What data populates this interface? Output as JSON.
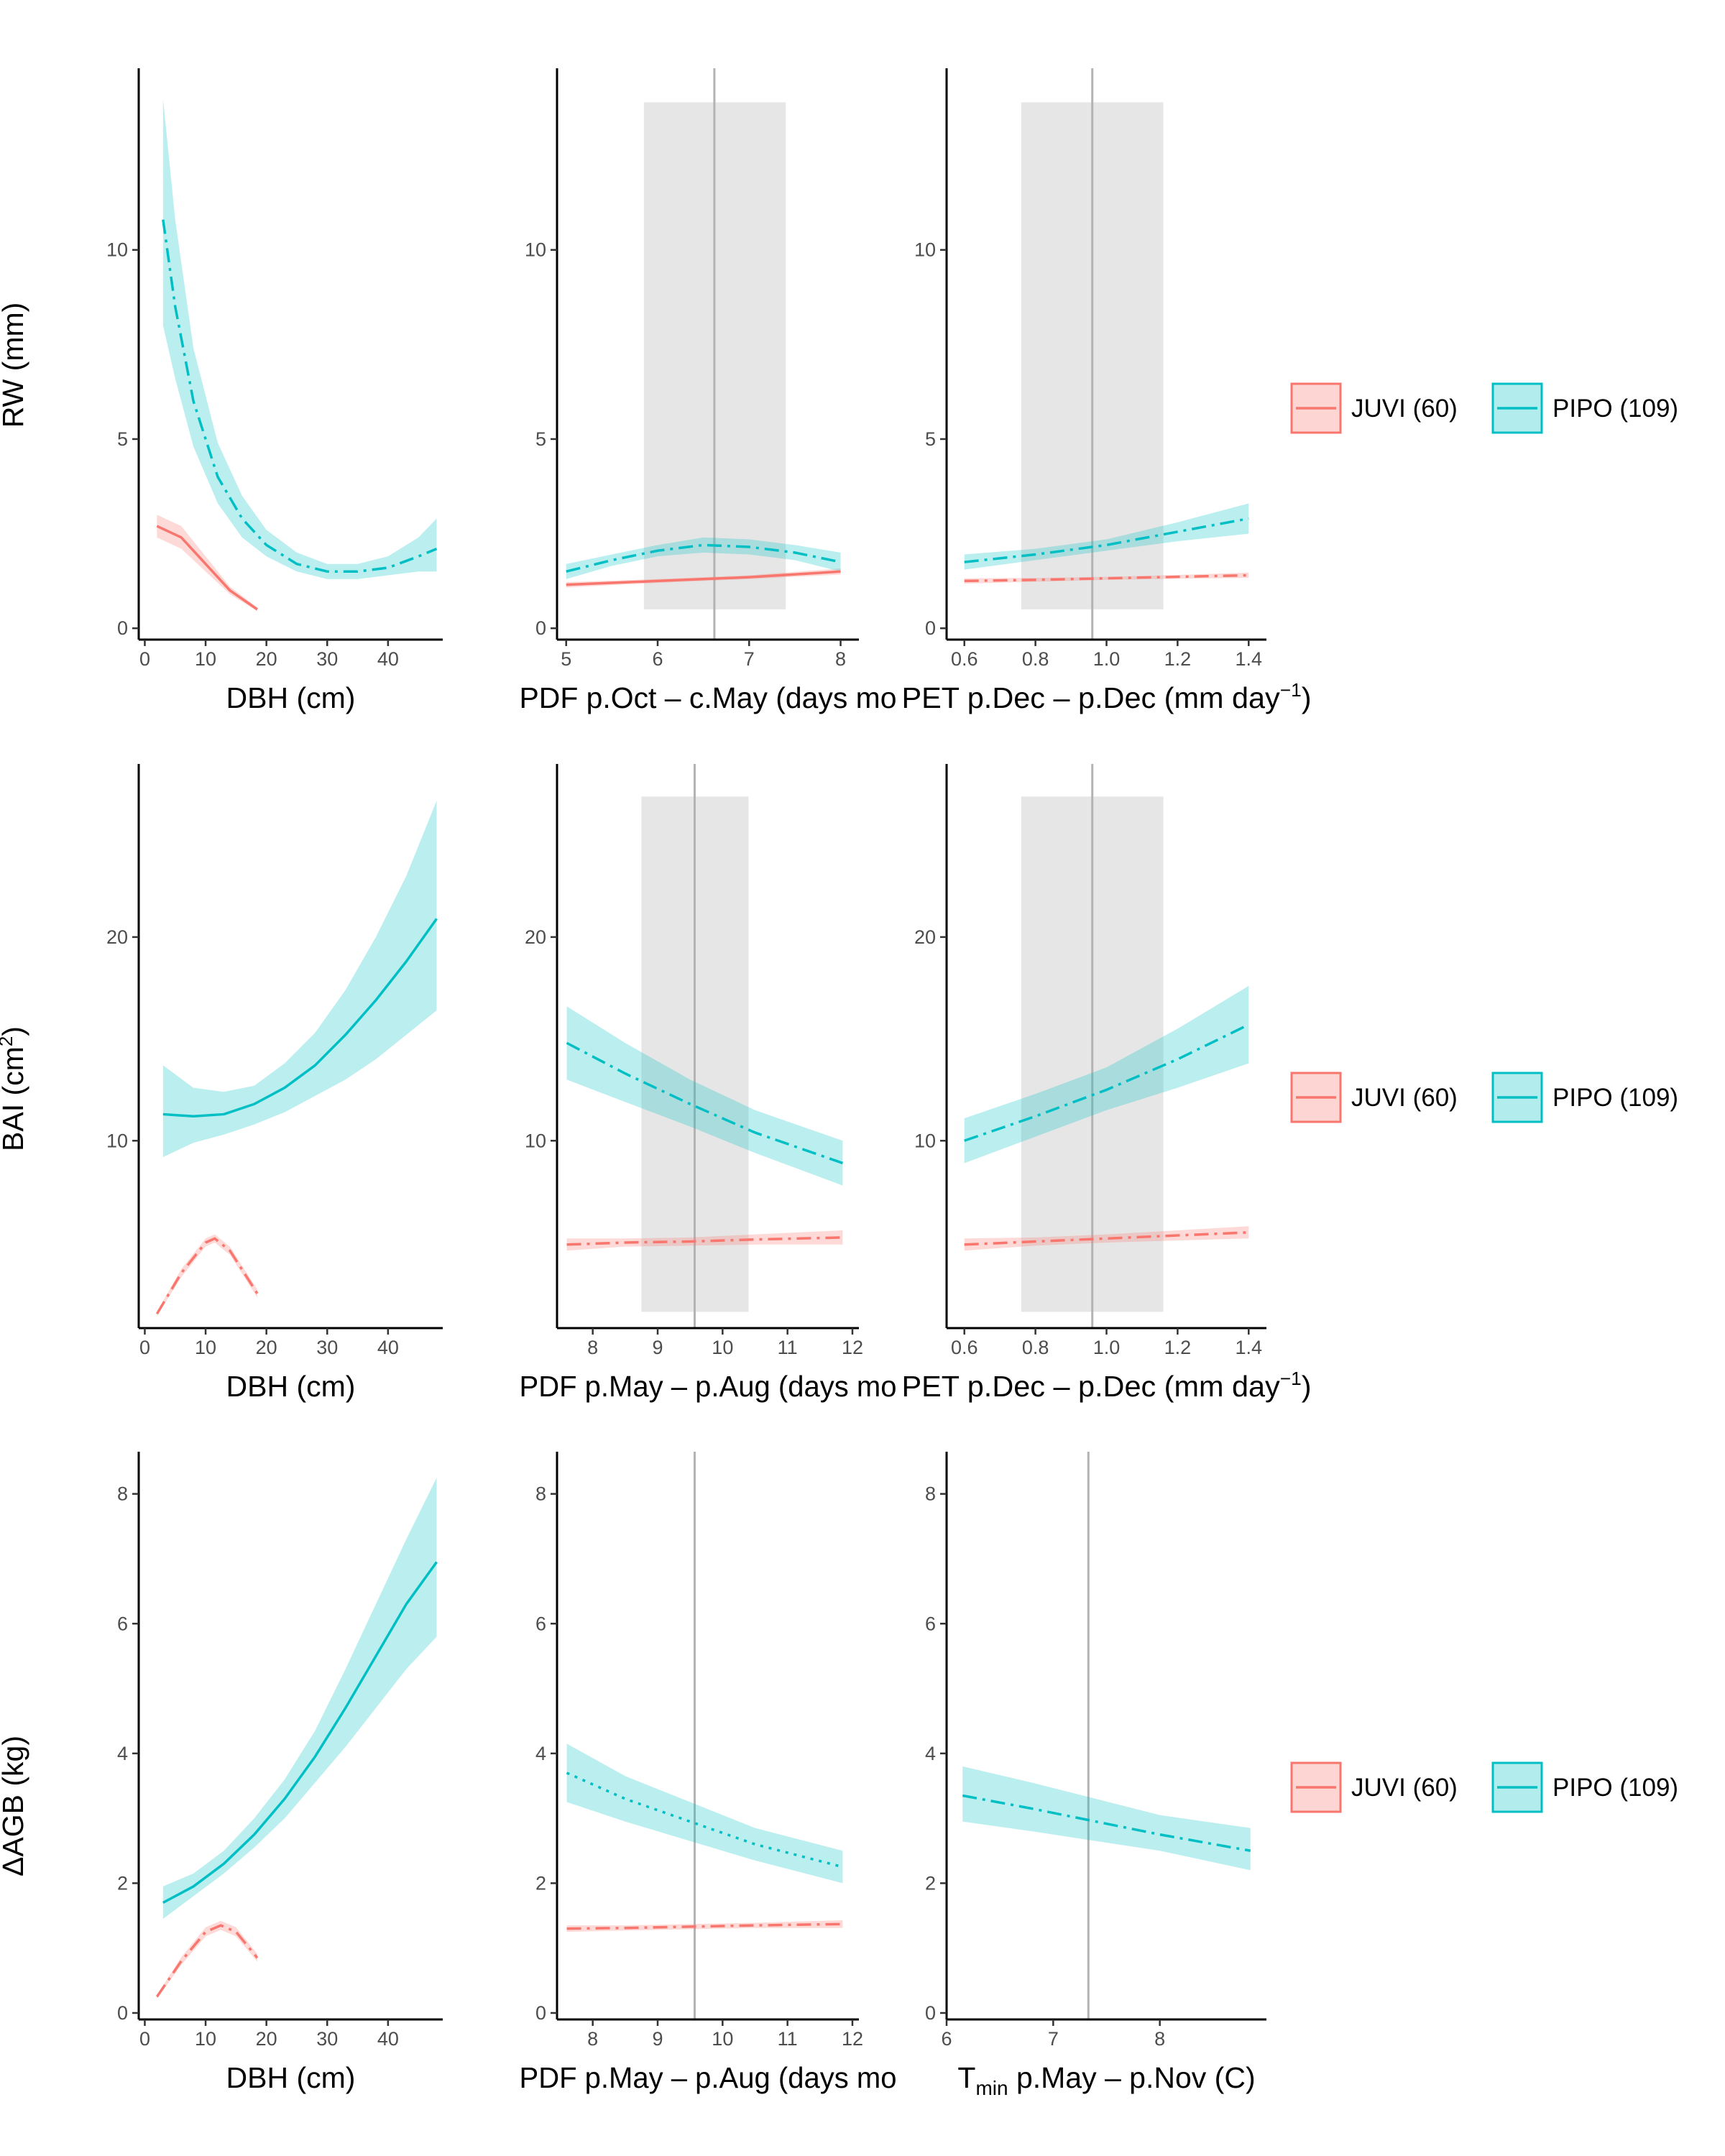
{
  "colors": {
    "juvi": "#F8766D",
    "pipo": "#00BFC4",
    "shade": "#E6E6E6",
    "vline": "#B3B3B3"
  },
  "legend": {
    "items": [
      {
        "label": "JUVI (60)",
        "color": "#F8766D"
      },
      {
        "label": "PIPO (109)",
        "color": "#00BFC4"
      }
    ]
  },
  "rows": [
    {
      "ylabel": "RW (mm)",
      "ylabel_sup": ""
    },
    {
      "ylabel": "BAI (cm",
      "ylabel_sup": "2",
      "ylabel_close": ")"
    },
    {
      "ylabel": "ΔAGB (kg)",
      "ylabel_sup": ""
    }
  ],
  "chart_data": [
    {
      "type": "line",
      "row": 0,
      "col": 0,
      "xlabel": "DBH  (cm)",
      "xlim": [
        -1,
        49
      ],
      "ylim": [
        -0.3,
        14.8
      ],
      "xticks": [
        0,
        10,
        20,
        30,
        40
      ],
      "xtick_labels": [
        "0",
        "10",
        "20",
        "30",
        "40"
      ],
      "yticks": [
        0,
        5,
        10
      ],
      "ytick_labels": [
        "0",
        "5",
        "10"
      ],
      "series": [
        {
          "name": "JUVI (60)",
          "color": "#F8766D",
          "dash": "solid",
          "x": [
            2,
            6,
            10,
            14,
            18.5
          ],
          "y": [
            2.7,
            2.4,
            1.7,
            1.0,
            0.5
          ],
          "lower": [
            2.4,
            2.1,
            1.5,
            0.9,
            0.45
          ],
          "upper": [
            3.0,
            2.7,
            1.9,
            1.1,
            0.55
          ]
        },
        {
          "name": "PIPO (109)",
          "color": "#00BFC4",
          "dash": "dashdot",
          "x": [
            3,
            5,
            8,
            12,
            16,
            20,
            25,
            30,
            35,
            40,
            45,
            48
          ],
          "y": [
            10.8,
            8.5,
            6.0,
            4.0,
            2.9,
            2.2,
            1.7,
            1.5,
            1.5,
            1.6,
            1.9,
            2.1
          ],
          "lower": [
            8.0,
            6.6,
            4.8,
            3.3,
            2.4,
            1.9,
            1.5,
            1.3,
            1.3,
            1.4,
            1.5,
            1.5
          ],
          "upper": [
            14.0,
            10.8,
            7.4,
            4.9,
            3.5,
            2.6,
            2.0,
            1.7,
            1.7,
            1.9,
            2.4,
            2.9
          ]
        }
      ]
    },
    {
      "type": "line",
      "row": 0,
      "col": 1,
      "xlabel": "PDF p.Oct – c.May (days mo",
      "xlim": [
        4.9,
        8.2
      ],
      "ylim": [
        -0.3,
        14.8
      ],
      "xticks": [
        5,
        6,
        7,
        8
      ],
      "xtick_labels": [
        "5",
        "6",
        "7",
        "8"
      ],
      "yticks": [
        0,
        5,
        10
      ],
      "ytick_labels": [
        "0",
        "5",
        "10"
      ],
      "shade": [
        5.85,
        7.4
      ],
      "shade_y": [
        0.5,
        13.9
      ],
      "vline": 6.62,
      "series": [
        {
          "name": "JUVI (60)",
          "color": "#F8766D",
          "dash": "solid",
          "x": [
            5,
            6,
            7,
            8
          ],
          "y": [
            1.15,
            1.25,
            1.35,
            1.5
          ],
          "lower": [
            1.08,
            1.2,
            1.3,
            1.42
          ],
          "upper": [
            1.22,
            1.3,
            1.4,
            1.58
          ]
        },
        {
          "name": "PIPO (109)",
          "color": "#00BFC4",
          "dash": "dashdot",
          "x": [
            5,
            5.5,
            6,
            6.5,
            7,
            7.5,
            8
          ],
          "y": [
            1.5,
            1.8,
            2.05,
            2.2,
            2.15,
            2.0,
            1.75
          ],
          "lower": [
            1.3,
            1.65,
            1.9,
            2.0,
            1.95,
            1.8,
            1.5
          ],
          "upper": [
            1.7,
            1.95,
            2.2,
            2.4,
            2.35,
            2.2,
            2.0
          ]
        }
      ]
    },
    {
      "type": "line",
      "row": 0,
      "col": 2,
      "xlabel": "PET p.Dec – p.Dec (mm day",
      "xlabel_sup": "−1",
      "xlabel_close": ")",
      "xlim": [
        0.55,
        1.45
      ],
      "ylim": [
        -0.3,
        14.8
      ],
      "xticks": [
        0.6,
        0.8,
        1.0,
        1.2,
        1.4
      ],
      "xtick_labels": [
        "0.6",
        "0.8",
        "1.0",
        "1.2",
        "1.4"
      ],
      "yticks": [
        0,
        5,
        10
      ],
      "ytick_labels": [
        "0",
        "5",
        "10"
      ],
      "shade": [
        0.76,
        1.16
      ],
      "shade_y": [
        0.5,
        13.9
      ],
      "vline": 0.96,
      "series": [
        {
          "name": "JUVI (60)",
          "color": "#F8766D",
          "dash": "dashdot",
          "x": [
            0.6,
            0.8,
            1.0,
            1.2,
            1.4
          ],
          "y": [
            1.25,
            1.28,
            1.32,
            1.36,
            1.4
          ],
          "lower": [
            1.18,
            1.23,
            1.28,
            1.31,
            1.33
          ],
          "upper": [
            1.32,
            1.33,
            1.36,
            1.41,
            1.47
          ]
        },
        {
          "name": "PIPO (109)",
          "color": "#00BFC4",
          "dash": "dashdot",
          "x": [
            0.6,
            0.8,
            1.0,
            1.2,
            1.4
          ],
          "y": [
            1.75,
            1.95,
            2.2,
            2.55,
            2.9
          ],
          "lower": [
            1.55,
            1.8,
            2.05,
            2.3,
            2.5
          ],
          "upper": [
            1.95,
            2.1,
            2.35,
            2.8,
            3.3
          ]
        }
      ]
    },
    {
      "type": "line",
      "row": 1,
      "col": 0,
      "xlabel": "DBH  (cm)",
      "xlim": [
        -1,
        49
      ],
      "ylim": [
        0.8,
        28.5
      ],
      "xticks": [
        0,
        10,
        20,
        30,
        40
      ],
      "xtick_labels": [
        "0",
        "10",
        "20",
        "30",
        "40"
      ],
      "yticks": [
        10,
        20
      ],
      "ytick_labels": [
        "10",
        "20"
      ],
      "series": [
        {
          "name": "JUVI (60)",
          "color": "#F8766D",
          "dash": "dashdot",
          "x": [
            2,
            6,
            10,
            11.5,
            14,
            18.5
          ],
          "y": [
            1.5,
            3.5,
            5.0,
            5.2,
            4.6,
            2.5
          ],
          "lower": [
            1.4,
            3.3,
            4.8,
            5.0,
            4.4,
            2.3
          ],
          "upper": [
            1.6,
            3.7,
            5.2,
            5.4,
            4.8,
            2.7
          ]
        },
        {
          "name": "PIPO (109)",
          "color": "#00BFC4",
          "dash": "solid",
          "x": [
            3,
            8,
            13,
            18,
            23,
            28,
            33,
            38,
            43,
            48
          ],
          "y": [
            11.3,
            11.2,
            11.3,
            11.8,
            12.6,
            13.7,
            15.2,
            16.9,
            18.8,
            20.9
          ],
          "lower": [
            9.2,
            9.9,
            10.3,
            10.8,
            11.4,
            12.2,
            13.0,
            14.0,
            15.2,
            16.4
          ],
          "upper": [
            13.7,
            12.6,
            12.4,
            12.7,
            13.8,
            15.3,
            17.4,
            20.0,
            23.0,
            26.7
          ]
        }
      ]
    },
    {
      "type": "line",
      "row": 1,
      "col": 1,
      "xlabel": "PDF p.May – p.Aug (days mo",
      "xlim": [
        7.45,
        12.1
      ],
      "ylim": [
        0.8,
        28.5
      ],
      "xticks": [
        8,
        9,
        10,
        11,
        12
      ],
      "xtick_labels": [
        "8",
        "9",
        "10",
        "11",
        "12"
      ],
      "yticks": [
        10,
        20
      ],
      "ytick_labels": [
        "10",
        "20"
      ],
      "shade": [
        8.75,
        10.4
      ],
      "shade_y": [
        1.6,
        26.9
      ],
      "vline": 9.57,
      "series": [
        {
          "name": "JUVI (60)",
          "color": "#F8766D",
          "dash": "dashdot",
          "x": [
            7.6,
            8.5,
            9.5,
            10.5,
            11.85
          ],
          "y": [
            4.9,
            5.0,
            5.05,
            5.15,
            5.25
          ],
          "lower": [
            4.6,
            4.8,
            4.85,
            4.9,
            4.9
          ],
          "upper": [
            5.2,
            5.2,
            5.25,
            5.4,
            5.6
          ]
        },
        {
          "name": "PIPO (109)",
          "color": "#00BFC4",
          "dash": "dashdot",
          "x": [
            7.6,
            8.5,
            9.5,
            10.5,
            11.85
          ],
          "y": [
            14.8,
            13.3,
            11.8,
            10.4,
            8.9
          ],
          "lower": [
            13.0,
            11.9,
            10.7,
            9.4,
            7.8
          ],
          "upper": [
            16.6,
            14.8,
            13.0,
            11.5,
            10.0
          ]
        }
      ]
    },
    {
      "type": "line",
      "row": 1,
      "col": 2,
      "xlabel": "PET p.Dec – p.Dec (mm day",
      "xlabel_sup": "−1",
      "xlabel_close": ")",
      "xlim": [
        0.55,
        1.45
      ],
      "ylim": [
        0.8,
        28.5
      ],
      "xticks": [
        0.6,
        0.8,
        1.0,
        1.2,
        1.4
      ],
      "xtick_labels": [
        "0.6",
        "0.8",
        "1.0",
        "1.2",
        "1.4"
      ],
      "yticks": [
        10,
        20
      ],
      "ytick_labels": [
        "10",
        "20"
      ],
      "shade": [
        0.76,
        1.16
      ],
      "shade_y": [
        1.6,
        26.9
      ],
      "vline": 0.96,
      "series": [
        {
          "name": "JUVI (60)",
          "color": "#F8766D",
          "dash": "dashdot",
          "x": [
            0.6,
            0.8,
            1.0,
            1.2,
            1.4
          ],
          "y": [
            4.9,
            5.05,
            5.2,
            5.35,
            5.5
          ],
          "lower": [
            4.6,
            4.85,
            5.0,
            5.1,
            5.2
          ],
          "upper": [
            5.2,
            5.25,
            5.4,
            5.6,
            5.8
          ]
        },
        {
          "name": "PIPO (109)",
          "color": "#00BFC4",
          "dash": "dashdot",
          "x": [
            0.6,
            0.8,
            1.0,
            1.2,
            1.4
          ],
          "y": [
            10.0,
            11.2,
            12.5,
            14.0,
            15.7
          ],
          "lower": [
            8.9,
            10.2,
            11.5,
            12.6,
            13.8
          ],
          "upper": [
            11.1,
            12.3,
            13.6,
            15.5,
            17.6
          ]
        }
      ]
    },
    {
      "type": "line",
      "row": 2,
      "col": 0,
      "xlabel": "DBH  (cm)",
      "xlim": [
        -1,
        49
      ],
      "ylim": [
        -0.1,
        8.65
      ],
      "xticks": [
        0,
        10,
        20,
        30,
        40
      ],
      "xtick_labels": [
        "0",
        "10",
        "20",
        "30",
        "40"
      ],
      "yticks": [
        0,
        2,
        4,
        6,
        8
      ],
      "ytick_labels": [
        "0",
        "2",
        "4",
        "6",
        "8"
      ],
      "series": [
        {
          "name": "JUVI (60)",
          "color": "#F8766D",
          "dash": "dashdot",
          "x": [
            2,
            6,
            10,
            12.5,
            15,
            18.5
          ],
          "y": [
            0.25,
            0.8,
            1.25,
            1.35,
            1.25,
            0.85
          ],
          "lower": [
            0.22,
            0.74,
            1.18,
            1.28,
            1.18,
            0.79
          ],
          "upper": [
            0.28,
            0.86,
            1.32,
            1.42,
            1.32,
            0.91
          ]
        },
        {
          "name": "PIPO (109)",
          "color": "#00BFC4",
          "dash": "solid",
          "x": [
            3,
            8,
            13,
            18,
            23,
            28,
            33,
            38,
            43,
            48
          ],
          "y": [
            1.7,
            1.95,
            2.3,
            2.75,
            3.3,
            3.95,
            4.7,
            5.5,
            6.3,
            6.95
          ],
          "lower": [
            1.45,
            1.8,
            2.15,
            2.55,
            3.0,
            3.55,
            4.1,
            4.7,
            5.3,
            5.8
          ],
          "upper": [
            1.95,
            2.15,
            2.5,
            3.0,
            3.6,
            4.35,
            5.3,
            6.3,
            7.3,
            8.25
          ]
        }
      ]
    },
    {
      "type": "line",
      "row": 2,
      "col": 1,
      "xlabel": "PDF p.May – p.Aug (days mo",
      "xlim": [
        7.45,
        12.1
      ],
      "ylim": [
        -0.1,
        8.65
      ],
      "xticks": [
        8,
        9,
        10,
        11,
        12
      ],
      "xtick_labels": [
        "8",
        "9",
        "10",
        "11",
        "12"
      ],
      "yticks": [
        0,
        2,
        4,
        6,
        8
      ],
      "ytick_labels": [
        "0",
        "2",
        "4",
        "6",
        "8"
      ],
      "vline": 9.57,
      "series": [
        {
          "name": "JUVI (60)",
          "color": "#F8766D",
          "dash": "dashdot",
          "x": [
            7.6,
            8.5,
            9.5,
            10.5,
            11.85
          ],
          "y": [
            1.3,
            1.31,
            1.33,
            1.35,
            1.37
          ],
          "lower": [
            1.25,
            1.27,
            1.29,
            1.31,
            1.31
          ],
          "upper": [
            1.35,
            1.35,
            1.37,
            1.39,
            1.43
          ]
        },
        {
          "name": "PIPO (109)",
          "color": "#00BFC4",
          "dash": "dotted",
          "x": [
            7.6,
            8.5,
            9.5,
            10.5,
            11.85
          ],
          "y": [
            3.7,
            3.3,
            2.95,
            2.6,
            2.25
          ],
          "lower": [
            3.25,
            2.95,
            2.65,
            2.35,
            2.0
          ],
          "upper": [
            4.15,
            3.65,
            3.25,
            2.85,
            2.5
          ]
        }
      ]
    },
    {
      "type": "line",
      "row": 2,
      "col": 2,
      "xlabel": "T",
      "xlabel_sub": "min",
      "xlabel_rest": " p.May – p.Nov (C)",
      "xlim": [
        6.0,
        9.0
      ],
      "ylim": [
        -0.1,
        8.65
      ],
      "xticks": [
        6,
        7,
        8
      ],
      "xtick_labels": [
        "6",
        "7",
        "8"
      ],
      "yticks": [
        0,
        2,
        4,
        6,
        8
      ],
      "ytick_labels": [
        "0",
        "2",
        "4",
        "6",
        "8"
      ],
      "vline": 7.33,
      "series": [
        {
          "name": "PIPO (109)",
          "color": "#00BFC4",
          "dash": "dashdot",
          "x": [
            6.15,
            6.8,
            7.4,
            8.0,
            8.85
          ],
          "y": [
            3.35,
            3.15,
            2.95,
            2.75,
            2.5
          ],
          "lower": [
            2.95,
            2.8,
            2.65,
            2.5,
            2.2
          ],
          "upper": [
            3.8,
            3.55,
            3.3,
            3.05,
            2.85
          ]
        }
      ]
    }
  ]
}
